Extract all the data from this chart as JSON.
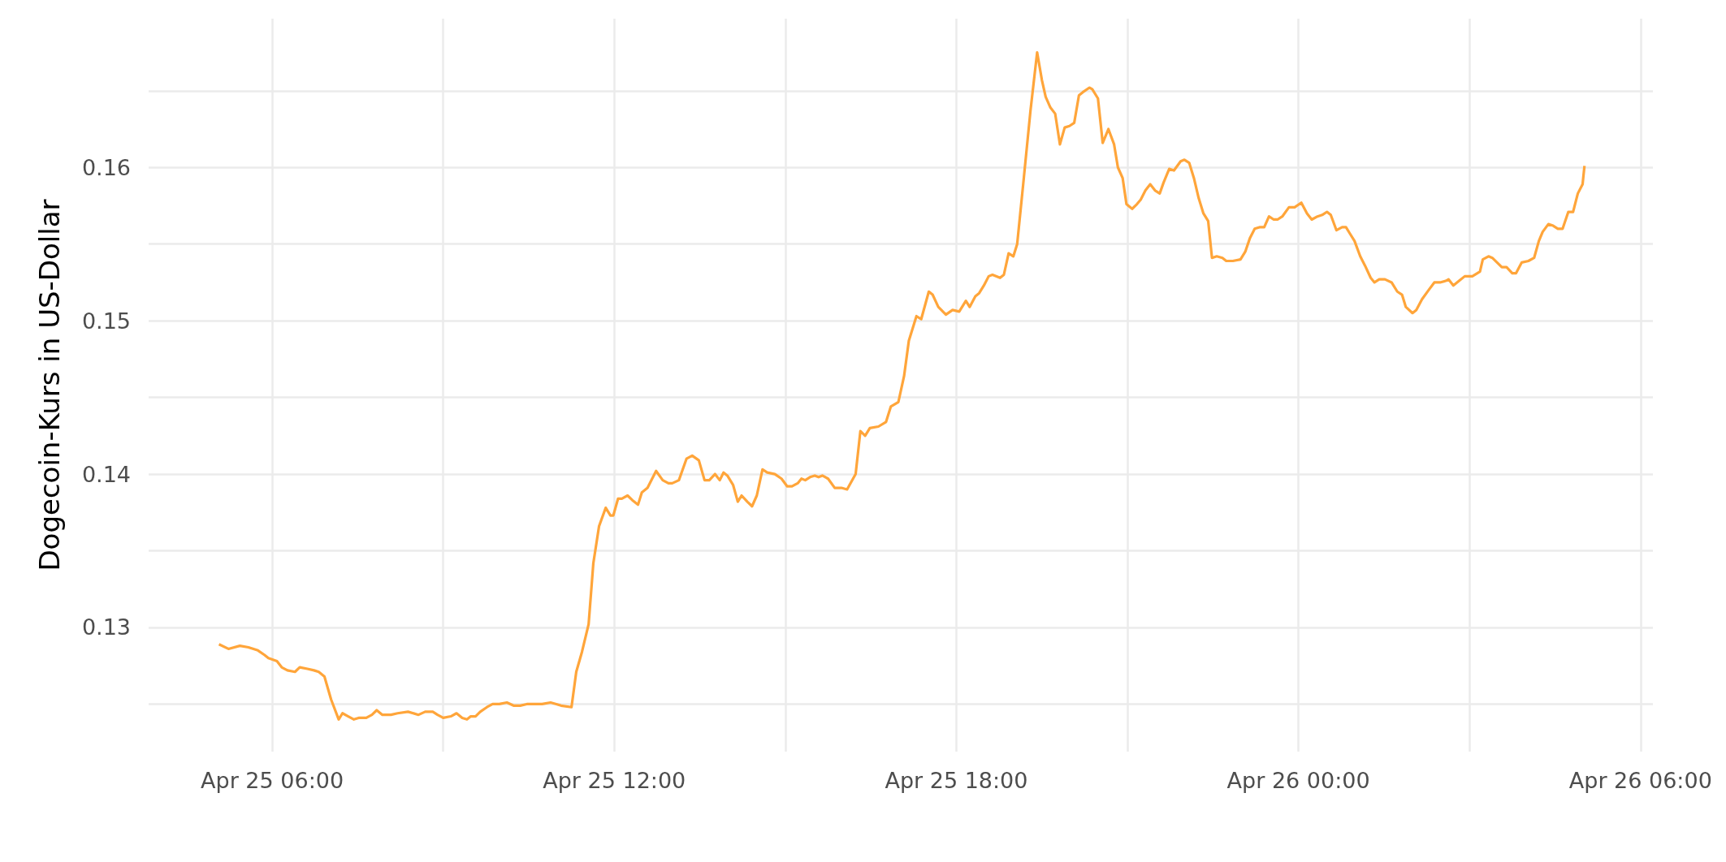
{
  "chart_data": {
    "type": "line",
    "ylabel": "Dogecoin-Kurs in US-Dollar",
    "grid": true,
    "marker": "none",
    "line_style": "solid",
    "xlim": [
      "--04-25T03:50",
      "--04-26T06:13"
    ],
    "xticks": [
      {
        "value": "--04-25T06:00",
        "label": "Apr 25 06:00"
      },
      {
        "value": "--04-25T09:00",
        "label": null
      },
      {
        "value": "--04-25T12:00",
        "label": "Apr 25 12:00"
      },
      {
        "value": "--04-25T15:00",
        "label": null
      },
      {
        "value": "--04-25T18:00",
        "label": "Apr 25 18:00"
      },
      {
        "value": "--04-25T21:00",
        "label": null
      },
      {
        "value": "--04-26T00:00",
        "label": "Apr 26 00:00"
      },
      {
        "value": "--04-26T03:00",
        "label": null
      },
      {
        "value": "--04-26T06:00",
        "label": "Apr 26 06:00"
      }
    ],
    "ylim": [
      0.1219,
      0.1697
    ],
    "yticks": [
      {
        "value": 0.125,
        "label": null
      },
      0.13,
      {
        "value": 0.135,
        "label": null
      },
      0.14,
      {
        "value": 0.145,
        "label": null
      },
      0.15,
      {
        "value": 0.155,
        "label": null
      },
      0.16,
      {
        "value": 0.165,
        "label": null
      }
    ],
    "series": [
      {
        "color": "#ffa53a",
        "x": [
          "--04-25T05:04",
          "--04-25T05:14",
          "--04-25T05:26",
          "--04-25T05:35",
          "--04-25T05:45",
          "--04-25T05:52",
          "--04-25T05:56",
          "--04-25T06:05",
          "--04-25T06:10",
          "--04-25T06:16",
          "--04-25T06:24",
          "--04-25T06:29",
          "--04-25T06:37",
          "--04-25T06:44",
          "--04-25T06:49",
          "--04-25T06:55",
          "--04-25T07:02",
          "--04-25T07:10",
          "--04-25T07:14",
          "--04-25T07:20",
          "--04-25T07:26",
          "--04-25T07:31",
          "--04-25T07:39",
          "--04-25T07:45",
          "--04-25T07:50",
          "--04-25T07:56",
          "--04-25T08:05",
          "--04-25T08:12",
          "--04-25T08:23",
          "--04-25T08:34",
          "--04-25T08:41",
          "--04-25T08:49",
          "--04-25T08:54",
          "--04-25T09:00",
          "--04-25T09:08",
          "--04-25T09:14",
          "--04-25T09:20",
          "--04-25T09:25",
          "--04-25T09:29",
          "--04-25T09:34",
          "--04-25T09:39",
          "--04-25T09:46",
          "--04-25T09:52",
          "--04-25T09:59",
          "--04-25T10:07",
          "--04-25T10:14",
          "--04-25T10:21",
          "--04-25T10:28",
          "--04-25T10:35",
          "--04-25T10:44",
          "--04-25T10:53",
          "--04-25T10:59",
          "--04-25T11:04",
          "--04-25T11:15",
          "--04-25T11:20",
          "--04-25T11:26",
          "--04-25T11:33",
          "--04-25T11:38",
          "--04-25T11:44",
          "--04-25T11:51",
          "--04-25T11:56",
          "--04-25T11:59",
          "--04-25T12:04",
          "--04-25T12:08",
          "--04-25T12:14",
          "--04-25T12:19",
          "--04-25T12:25",
          "--04-25T12:29",
          "--04-25T12:35",
          "--04-25T12:44",
          "--04-25T12:51",
          "--04-25T12:57",
          "--04-25T13:01",
          "--04-25T13:08",
          "--04-25T13:16",
          "--04-25T13:22",
          "--04-25T13:29",
          "--04-25T13:35",
          "--04-25T13:40",
          "--04-25T13:46",
          "--04-25T13:51",
          "--04-25T13:55",
          "--04-25T13:59",
          "--04-25T14:05",
          "--04-25T14:10",
          "--04-25T14:14",
          "--04-25T14:20",
          "--04-25T14:25",
          "--04-25T14:30",
          "--04-25T14:36",
          "--04-25T14:41",
          "--04-25T14:49",
          "--04-25T14:56",
          "--04-25T15:02",
          "--04-25T15:07",
          "--04-25T15:13",
          "--04-25T15:17",
          "--04-25T15:21",
          "--04-25T15:26",
          "--04-25T15:31",
          "--04-25T15:35",
          "--04-25T15:39",
          "--04-25T15:45",
          "--04-25T15:52",
          "--04-25T15:59",
          "--04-25T16:05",
          "--04-25T16:14",
          "--04-25T16:19",
          "--04-25T16:24",
          "--04-25T16:29",
          "--04-25T16:38",
          "--04-25T16:46",
          "--04-25T16:51",
          "--04-25T16:59",
          "--04-25T17:05",
          "--04-25T17:10",
          "--04-25T17:18",
          "--04-25T17:23",
          "--04-25T17:31",
          "--04-25T17:35",
          "--04-25T17:41",
          "--04-25T17:49",
          "--04-25T17:56",
          "--04-25T18:03",
          "--04-25T18:10",
          "--04-25T18:14",
          "--04-25T18:20",
          "--04-25T18:24",
          "--04-25T18:29",
          "--04-25T18:34",
          "--04-25T18:38",
          "--04-25T18:46",
          "--04-25T18:50",
          "--04-25T18:55",
          "--04-25T19:00",
          "--04-25T19:04",
          "--04-25T19:10",
          "--04-25T19:18",
          "--04-25T19:25",
          "--04-25T19:30",
          "--04-25T19:34",
          "--04-25T19:39",
          "--04-25T19:44",
          "--04-25T19:49",
          "--04-25T19:54",
          "--04-25T19:59",
          "--04-25T20:04",
          "--04-25T20:09",
          "--04-25T20:13",
          "--04-25T20:20",
          "--04-25T20:23",
          "--04-25T20:29",
          "--04-25T20:34",
          "--04-25T20:40",
          "--04-25T20:46",
          "--04-25T20:50",
          "--04-25T20:55",
          "--04-25T20:59",
          "--04-25T21:05",
          "--04-25T21:10",
          "--04-25T21:14",
          "--04-25T21:19",
          "--04-25T21:24",
          "--04-25T21:29",
          "--04-25T21:34",
          "--04-25T21:38",
          "--04-25T21:44",
          "--04-25T21:49",
          "--04-25T21:56",
          "--04-25T22:00",
          "--04-25T22:05",
          "--04-25T22:10",
          "--04-25T22:15",
          "--04-25T22:20",
          "--04-25T22:25",
          "--04-25T22:29",
          "--04-25T22:34",
          "--04-25T22:40",
          "--04-25T22:44",
          "--04-25T22:51",
          "--04-25T22:59",
          "--04-25T23:04",
          "--04-25T23:09",
          "--04-25T23:14",
          "--04-25T23:19",
          "--04-25T23:24",
          "--04-25T23:29",
          "--04-25T23:34",
          "--04-25T23:38",
          "--04-25T23:43",
          "--04-25T23:50",
          "--04-25T23:56",
          "--04-26T00:03",
          "--04-26T00:09",
          "--04-26T00:14",
          "--04-26T00:20",
          "--04-26T00:25",
          "--04-26T00:30",
          "--04-26T00:34",
          "--04-26T00:40",
          "--04-26T00:46",
          "--04-26T00:50",
          "--04-26T00:54",
          "--04-26T00:59",
          "--04-26T01:05",
          "--04-26T01:10",
          "--04-26T01:16",
          "--04-26T01:20",
          "--04-26T01:25",
          "--04-26T01:31",
          "--04-26T01:38",
          "--04-26T01:44",
          "--04-26T01:49",
          "--04-26T01:53",
          "--04-26T02:00",
          "--04-26T02:04",
          "--04-26T02:10",
          "--04-26T02:17",
          "--04-26T02:23",
          "--04-26T02:29",
          "--04-26T02:35",
          "--04-26T02:38",
          "--04-26T02:43",
          "--04-26T02:49",
          "--04-26T02:55",
          "--04-26T03:03",
          "--04-26T03:11",
          "--04-26T03:14",
          "--04-26T03:20",
          "--04-26T03:24",
          "--04-26T03:34",
          "--04-26T03:39",
          "--04-26T03:45",
          "--04-26T03:49",
          "--04-26T03:55",
          "--04-26T04:02",
          "--04-26T04:08",
          "--04-26T04:13",
          "--04-26T04:17",
          "--04-26T04:23",
          "--04-26T04:28",
          "--04-26T04:33",
          "--04-26T04:38",
          "--04-26T04:44",
          "--04-26T04:49",
          "--04-26T04:54",
          "--04-26T04:59",
          "--04-26T05:01"
        ],
        "values": [
          0.1289,
          0.1286,
          0.1288,
          0.1287,
          0.1285,
          0.1282,
          0.128,
          0.1278,
          0.1274,
          0.1272,
          0.1271,
          0.1274,
          0.1273,
          0.1272,
          0.1271,
          0.1268,
          0.1253,
          0.124,
          0.1244,
          0.1242,
          0.124,
          0.1241,
          0.1241,
          0.1243,
          0.1246,
          0.1243,
          0.1243,
          0.1244,
          0.1245,
          0.1243,
          0.1245,
          0.1245,
          0.1243,
          0.1241,
          0.1242,
          0.1244,
          0.1241,
          0.124,
          0.1242,
          0.1242,
          0.1245,
          0.1248,
          0.125,
          0.125,
          0.1251,
          0.1249,
          0.1249,
          0.125,
          0.125,
          0.125,
          0.1251,
          0.125,
          0.1249,
          0.1248,
          0.1271,
          0.1284,
          0.1302,
          0.1342,
          0.1366,
          0.1378,
          0.1373,
          0.1373,
          0.1384,
          0.1384,
          0.1386,
          0.1383,
          0.138,
          0.1388,
          0.1391,
          0.1402,
          0.1396,
          0.1394,
          0.1394,
          0.1396,
          0.141,
          0.1412,
          0.1409,
          0.1396,
          0.1396,
          0.14,
          0.1396,
          0.1401,
          0.1399,
          0.1393,
          0.1382,
          0.1386,
          0.1382,
          0.1379,
          0.1386,
          0.1403,
          0.1401,
          0.14,
          0.1397,
          0.1392,
          0.1392,
          0.1394,
          0.1397,
          0.1396,
          0.1398,
          0.1399,
          0.1398,
          0.1399,
          0.1397,
          0.1391,
          0.1391,
          0.139,
          0.14,
          0.1428,
          0.1425,
          0.143,
          0.1431,
          0.1434,
          0.1444,
          0.1447,
          0.1464,
          0.1487,
          0.1503,
          0.1501,
          0.1519,
          0.1517,
          0.1509,
          0.1504,
          0.1507,
          0.1506,
          0.1513,
          0.1509,
          0.1516,
          0.1518,
          0.1523,
          0.1529,
          0.153,
          0.1528,
          0.153,
          0.1544,
          0.1542,
          0.155,
          0.1587,
          0.1637,
          0.1675,
          0.1657,
          0.1646,
          0.1639,
          0.1635,
          0.1615,
          0.1626,
          0.1627,
          0.1629,
          0.1647,
          0.1649,
          0.1652,
          0.1651,
          0.1645,
          0.1616,
          0.1625,
          0.1615,
          0.16,
          0.1593,
          0.1576,
          0.1573,
          0.1576,
          0.1579,
          0.1585,
          0.1589,
          0.1585,
          0.1583,
          0.159,
          0.1599,
          0.1598,
          0.1604,
          0.1605,
          0.1603,
          0.1593,
          0.158,
          0.157,
          0.1565,
          0.1541,
          0.1542,
          0.1541,
          0.1539,
          0.1539,
          0.154,
          0.1545,
          0.1554,
          0.156,
          0.1561,
          0.1561,
          0.1568,
          0.1566,
          0.1566,
          0.1568,
          0.1574,
          0.1574,
          0.1577,
          0.157,
          0.1566,
          0.1568,
          0.1569,
          0.1571,
          0.1569,
          0.1559,
          0.1561,
          0.1561,
          0.1557,
          0.1552,
          0.1542,
          0.1536,
          0.1528,
          0.1525,
          0.1527,
          0.1527,
          0.1525,
          0.1519,
          0.1517,
          0.1509,
          0.1505,
          0.1507,
          0.1514,
          0.152,
          0.1525,
          0.1525,
          0.1526,
          0.1527,
          0.1523,
          0.1526,
          0.1529,
          0.1529,
          0.1532,
          0.154,
          0.1542,
          0.1541,
          0.1535,
          0.1535,
          0.1531,
          0.1531,
          0.1538,
          0.1539,
          0.1541,
          0.1552,
          0.1558,
          0.1563,
          0.1562,
          0.156,
          0.156,
          0.1571,
          0.1571,
          0.1583,
          0.1589,
          0.1601
        ]
      }
    ]
  }
}
